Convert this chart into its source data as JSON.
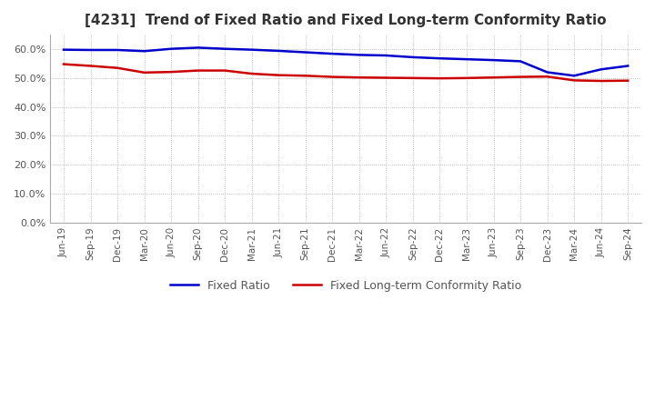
{
  "title": "[4231]  Trend of Fixed Ratio and Fixed Long-term Conformity Ratio",
  "title_fontsize": 11,
  "x_labels": [
    "Jun-19",
    "Sep-19",
    "Dec-19",
    "Mar-20",
    "Jun-20",
    "Sep-20",
    "Dec-20",
    "Mar-21",
    "Jun-21",
    "Sep-21",
    "Dec-21",
    "Mar-22",
    "Jun-22",
    "Sep-22",
    "Dec-22",
    "Mar-23",
    "Jun-23",
    "Sep-23",
    "Dec-23",
    "Mar-24",
    "Jun-24",
    "Sep-24"
  ],
  "fixed_ratio": [
    0.598,
    0.597,
    0.597,
    0.593,
    0.601,
    0.605,
    0.601,
    0.598,
    0.594,
    0.589,
    0.584,
    0.58,
    0.578,
    0.572,
    0.568,
    0.565,
    0.562,
    0.558,
    0.52,
    0.508,
    0.53,
    0.542
  ],
  "fixed_lt_ratio": [
    0.548,
    0.542,
    0.535,
    0.519,
    0.521,
    0.526,
    0.526,
    0.515,
    0.51,
    0.508,
    0.504,
    0.502,
    0.501,
    0.5,
    0.499,
    0.5,
    0.502,
    0.504,
    0.505,
    0.492,
    0.49,
    0.491
  ],
  "fixed_ratio_color": "#0000cc",
  "fixed_lt_ratio_color": "#cc0000",
  "ylim": [
    0.0,
    0.65
  ],
  "yticks": [
    0.0,
    0.1,
    0.2,
    0.3,
    0.4,
    0.5,
    0.6
  ],
  "grid_color": "#aaaaaa",
  "background_color": "#ffffff",
  "legend_fixed_ratio": "Fixed Ratio",
  "legend_fixed_lt_ratio": "Fixed Long-term Conformity Ratio"
}
